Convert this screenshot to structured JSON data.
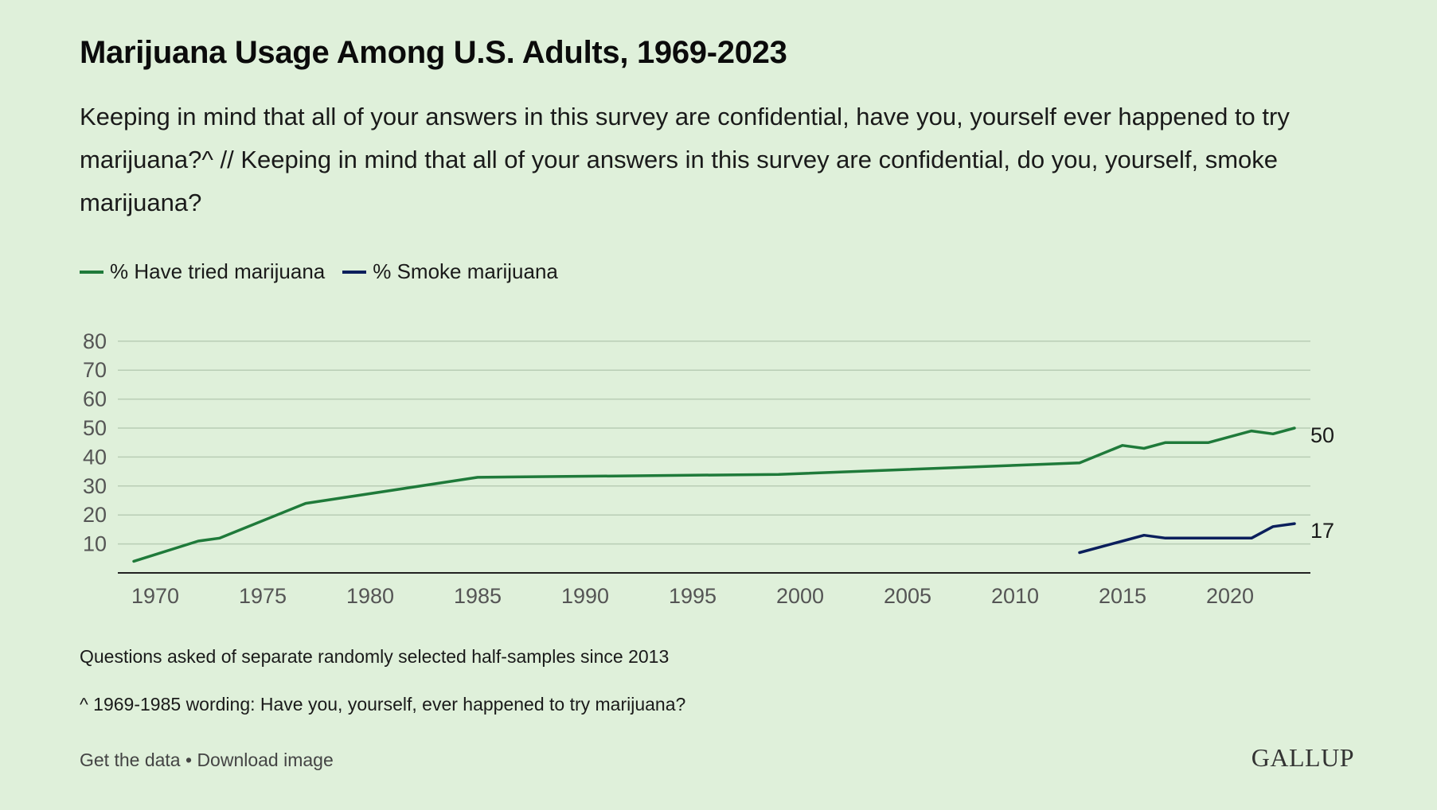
{
  "header": {
    "title": "Marijuana Usage Among U.S. Adults, 1969-2023",
    "subtitle": "Keeping in mind that all of your answers in this survey are confidential, have you, yourself ever happened to try marijuana?^ // Keeping in mind that all of your answers in this survey are confidential, do you, yourself, smoke marijuana?"
  },
  "colors": {
    "background": "#dff0da",
    "tried": "#1f7a3a",
    "smoke": "#0b1f5c",
    "grid": "#b9cdb5",
    "axis": "#222222"
  },
  "chart_data": {
    "type": "line",
    "title": "Marijuana Usage Among U.S. Adults, 1969-2023",
    "xlabel": "",
    "ylabel": "",
    "xlim": [
      1969,
      2023
    ],
    "ylim": [
      0,
      80
    ],
    "x_ticks": [
      1970,
      1975,
      1980,
      1985,
      1990,
      1995,
      2000,
      2005,
      2010,
      2015,
      2020
    ],
    "y_ticks": [
      10,
      20,
      30,
      40,
      50,
      60,
      70,
      80
    ],
    "grid": true,
    "legend_position": "top-left",
    "series": [
      {
        "name": "% Have tried marijuana",
        "color": "#1f7a3a",
        "end_label": "50",
        "points": [
          [
            1969,
            4
          ],
          [
            1972,
            11
          ],
          [
            1973,
            12
          ],
          [
            1977,
            24
          ],
          [
            1985,
            33
          ],
          [
            1999,
            34
          ],
          [
            2013,
            38
          ],
          [
            2015,
            44
          ],
          [
            2016,
            43
          ],
          [
            2017,
            45
          ],
          [
            2018,
            45
          ],
          [
            2019,
            45
          ],
          [
            2021,
            49
          ],
          [
            2022,
            48
          ],
          [
            2023,
            50
          ]
        ]
      },
      {
        "name": "% Smoke marijuana",
        "color": "#0b1f5c",
        "end_label": "17",
        "points": [
          [
            2013,
            7
          ],
          [
            2015,
            11
          ],
          [
            2016,
            13
          ],
          [
            2017,
            12
          ],
          [
            2018,
            12
          ],
          [
            2019,
            12
          ],
          [
            2021,
            12
          ],
          [
            2022,
            16
          ],
          [
            2023,
            17
          ]
        ]
      }
    ]
  },
  "notes": {
    "note1": "Questions asked of separate randomly selected half-samples since 2013",
    "note2": "^ 1969-1985 wording: Have you, yourself, ever happened to try marijuana?"
  },
  "footer": {
    "get_data": "Get the data",
    "separator": " • ",
    "download": "Download image",
    "brand": "GALLUP"
  }
}
